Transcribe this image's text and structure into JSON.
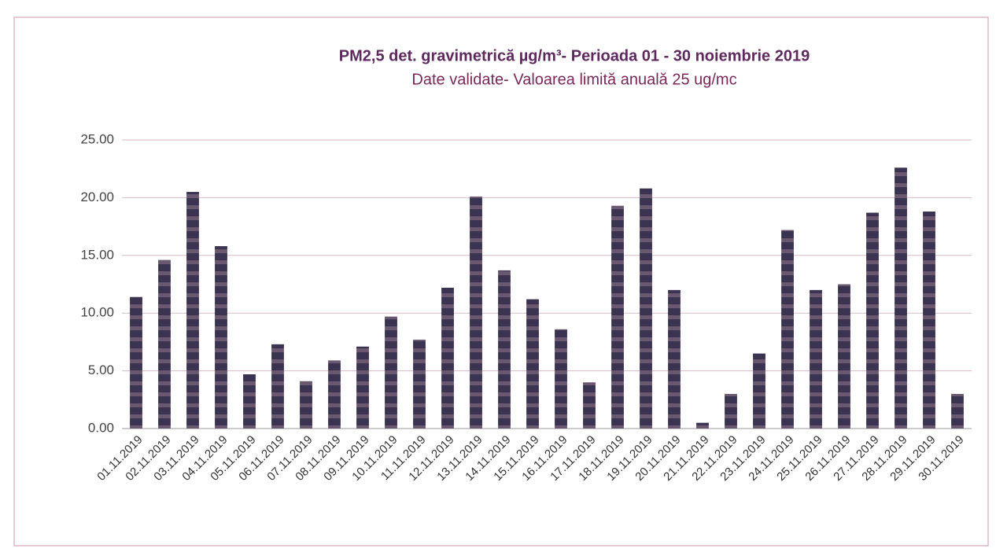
{
  "chart_data": {
    "type": "bar",
    "title": "PM2,5 det. gravimetrică µg/m³- Perioada 01 - 30 noiembrie 2019",
    "subtitle": "Date validate- Valoarea limită anuală  25 ug/mc",
    "categories": [
      "01.11.2019",
      "02.11.2019",
      "03.11.2019",
      "04.11.2019",
      "05.11.2019",
      "06.11.2019",
      "07.11.2019",
      "08.11.2019",
      "09.11.2019",
      "10.11.2019",
      "11.11.2019",
      "12.11.2019",
      "13.11.2019",
      "14.11.2019",
      "15.11.2019",
      "16.11.2019",
      "17.11.2019",
      "18.11.2019",
      "19.11.2019",
      "20.11.2019",
      "21.11.2019",
      "22.11.2019",
      "23.11.2019",
      "24.11.2019",
      "25.11.2019",
      "26.11.2019",
      "27.11.2019",
      "28.11.2019",
      "29.11.2019",
      "30.11.2019"
    ],
    "values": [
      11.4,
      14.6,
      20.5,
      15.8,
      4.7,
      7.3,
      4.1,
      5.9,
      7.1,
      9.7,
      7.7,
      12.2,
      20.1,
      13.7,
      11.2,
      8.6,
      4.0,
      19.3,
      20.8,
      12.0,
      0.5,
      3.0,
      6.5,
      17.2,
      12.0,
      12.5,
      18.7,
      22.6,
      18.8,
      3.0
    ],
    "color": "#3b3352",
    "ylim": [
      0,
      25
    ],
    "yticks": [
      {
        "value": 0,
        "label": "0.00"
      },
      {
        "value": 5,
        "label": "5.00"
      },
      {
        "value": 10,
        "label": "10.00"
      },
      {
        "value": 15,
        "label": "15.00"
      },
      {
        "value": 20,
        "label": "20.00"
      },
      {
        "value": 25,
        "label": "25.00"
      }
    ],
    "grid": true
  }
}
